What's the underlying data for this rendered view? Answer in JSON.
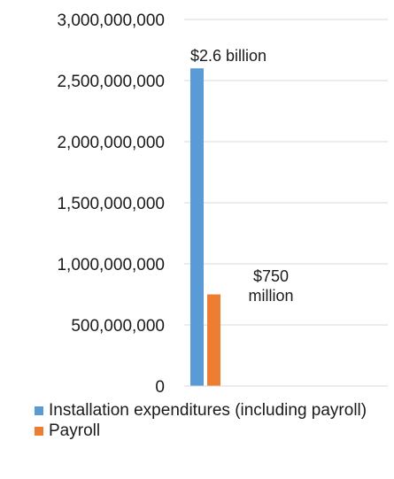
{
  "chart_data": {
    "type": "bar",
    "title": "",
    "xlabel": "",
    "ylabel": "",
    "ylim": [
      0,
      3000000000
    ],
    "yticks": [
      0,
      500000000,
      1000000000,
      1500000000,
      2000000000,
      2500000000,
      3000000000
    ],
    "ytick_labels": [
      "0",
      "500,000,000",
      "1,000,000,000",
      "1,500,000,000",
      "2,000,000,000",
      "2,500,000,000",
      "3,000,000,000"
    ],
    "grid": true,
    "legend_position": "bottom",
    "series": [
      {
        "name": "Installation expenditures (including payroll)",
        "color": "#5b9bd5",
        "values": [
          2600000000
        ],
        "data_label": "$2.6 billion"
      },
      {
        "name": "Payroll",
        "color": "#ed7d31",
        "values": [
          750000000
        ],
        "data_label_lines": [
          "$750",
          "million"
        ]
      }
    ]
  }
}
